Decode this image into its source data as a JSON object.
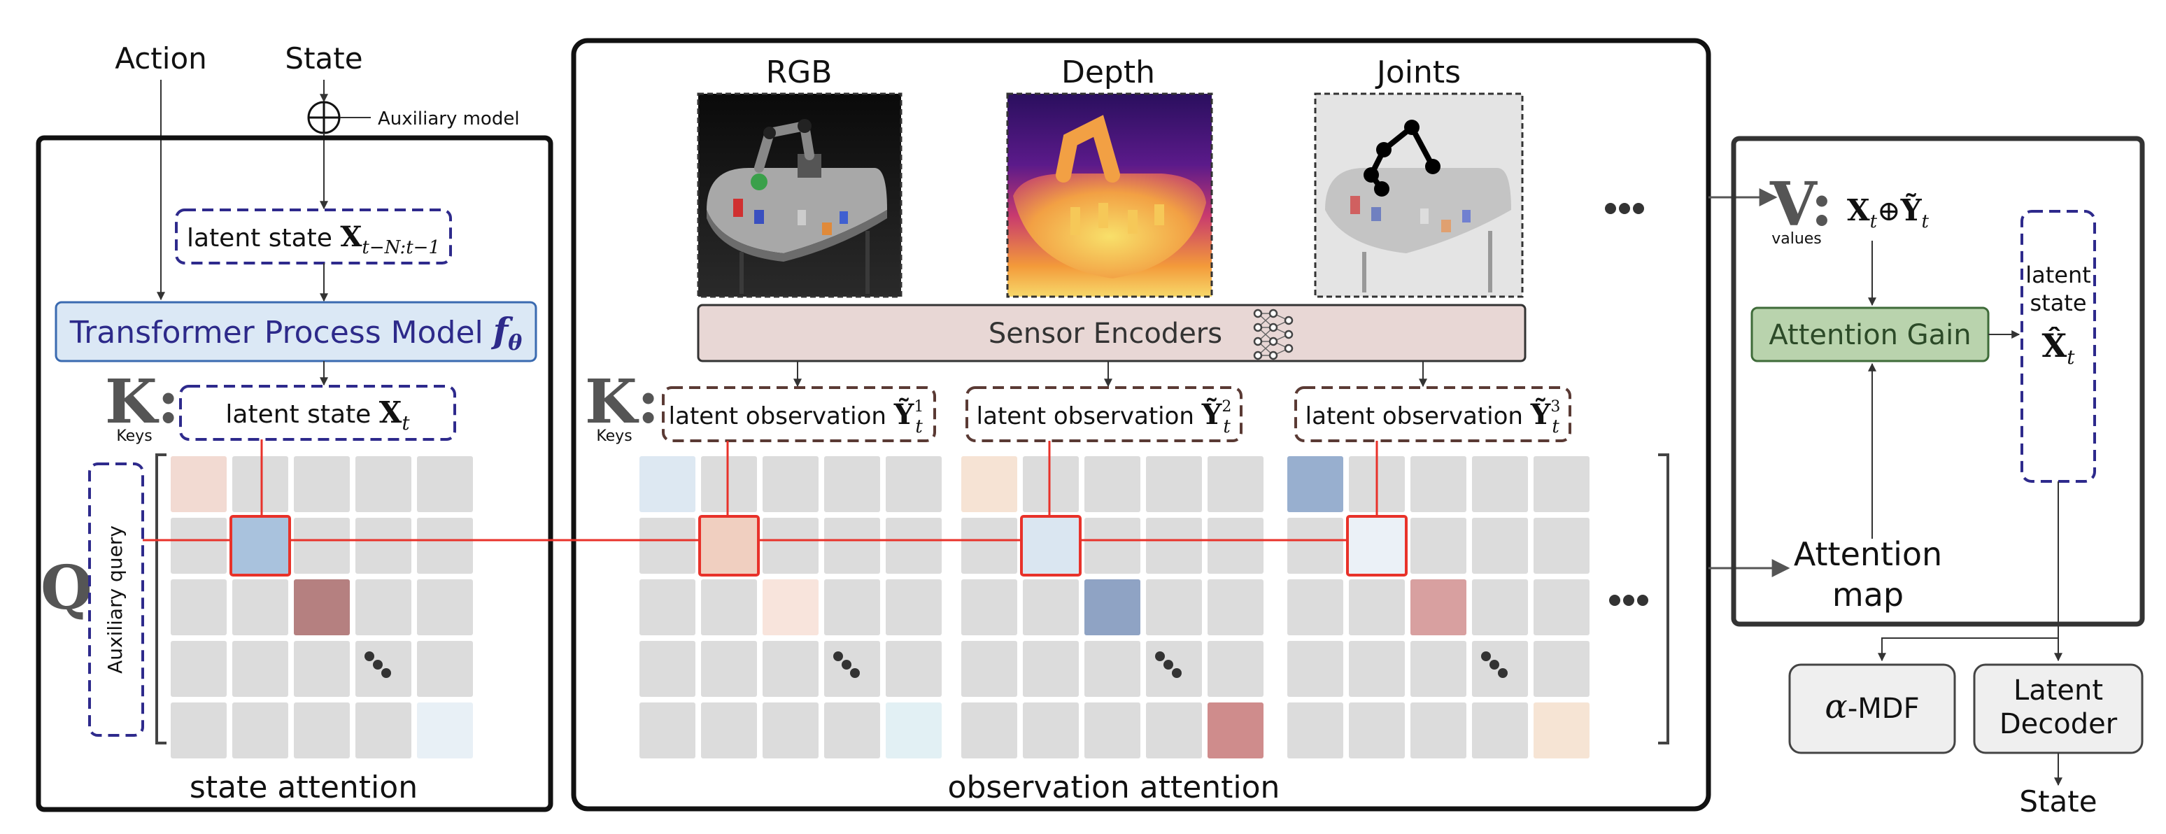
{
  "inputs": {
    "action": "Action",
    "state": "State",
    "auxiliary_model": "Auxiliary model"
  },
  "state_panel": {
    "latent_state_prev_prefix": "latent state ",
    "latent_state_prev_symbol": "X",
    "latent_state_prev_subscript": "t−N:t−1",
    "process_model_label": "Transformer Process Model ",
    "process_model_symbol": "f",
    "process_model_subscript": "θ",
    "keys_letter": "K:",
    "keys_word": "Keys",
    "latent_state_prefix": "latent state ",
    "latent_state_symbol": "X",
    "latent_state_subscript": "t",
    "query_letter": "Q",
    "auxiliary_query": "Auxiliary query",
    "caption": "state attention"
  },
  "observation_panel": {
    "modalities": [
      {
        "label": "RGB",
        "obs_prefix": "latent observation ",
        "obs_symbol": "Ỹ",
        "obs_superscript": "1",
        "obs_subscript": "t"
      },
      {
        "label": "Depth",
        "obs_prefix": "latent observation ",
        "obs_symbol": "Ỹ",
        "obs_superscript": "2",
        "obs_subscript": "t"
      },
      {
        "label": "Joints",
        "obs_prefix": "latent observation ",
        "obs_symbol": "Ỹ",
        "obs_superscript": "3",
        "obs_subscript": "t"
      }
    ],
    "sensor_encoders": "Sensor Encoders",
    "keys_letter": "K:",
    "keys_word": "Keys",
    "caption": "observation attention"
  },
  "values_panel": {
    "values_letter": "V:",
    "values_word": "values",
    "values_expr_x": "X",
    "values_expr_x_sub": "t",
    "values_expr_op": "⊕",
    "values_expr_y": "Ỹ",
    "values_expr_y_sub": "t",
    "attention_gain": "Attention Gain",
    "latent_state_line1": "latent",
    "latent_state_line2": "state",
    "latent_state_symbol": "X̂",
    "latent_state_subscript": "t",
    "attention_map_line1": "Attention",
    "attention_map_line2": "map"
  },
  "outputs": {
    "mdf_symbol": "α",
    "mdf_label": "-MDF",
    "decoder_line1": "Latent",
    "decoder_line2": "Decoder",
    "state": "State"
  },
  "colors": {
    "cell_gray": "#dcdcdc",
    "red_line": "#e8322a",
    "navy_dash": "#2e2a8c",
    "brown_dash": "#5a3a34",
    "transformer_fill": "#dbe8f5",
    "transformer_stroke": "#3a6ab0",
    "transformer_text": "#2d2a8a",
    "encoder_fill": "#e8d7d5",
    "gain_fill": "#b9d3ad",
    "gain_stroke": "#3e6b39",
    "output_fill": "#efefef"
  },
  "icons": [
    "neural-network-icon",
    "robot-arm-rgb-image",
    "robot-arm-depth-image",
    "robot-arm-joints-image",
    "circle-plus-icon"
  ]
}
